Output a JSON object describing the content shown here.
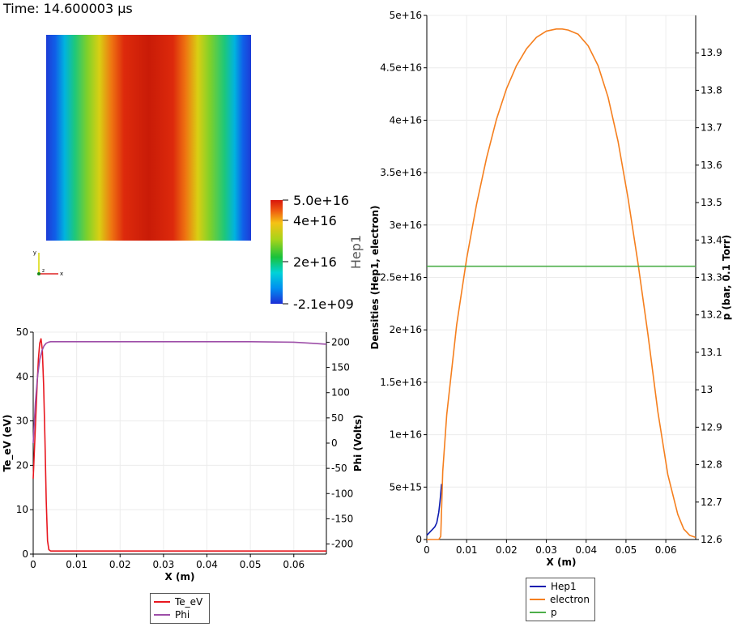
{
  "time_label": "Time: 14.600003 µs",
  "colormap": {
    "title": "Hep1",
    "max_label": "5.0e+16",
    "tick_labels": [
      "4e+16",
      "2e+16"
    ],
    "min_label": "-2.1e+09"
  },
  "axes_triad": {
    "x": "x",
    "y": "y",
    "z": "z"
  },
  "chart_data": [
    {
      "id": "te-phi",
      "type": "line",
      "title": "",
      "xlabel": "X (m)",
      "ylabel": "Te_eV (eV)",
      "y2label": "Phi (Volts)",
      "xlim": [
        0,
        0.0675
      ],
      "ylim": [
        0,
        50
      ],
      "y2lim": [
        -220,
        220
      ],
      "xticks": [
        0,
        0.01,
        0.02,
        0.03,
        0.04,
        0.05,
        0.06
      ],
      "xtick_labels": [
        "0",
        "0.01",
        "0.02",
        "0.03",
        "0.04",
        "0.05",
        "0.06"
      ],
      "yticks": [
        0,
        10,
        20,
        30,
        40,
        50
      ],
      "ytick_labels": [
        "0",
        "10",
        "20",
        "30",
        "40",
        "50"
      ],
      "y2ticks": [
        200,
        150,
        100,
        50,
        0,
        -50,
        -100,
        -150,
        -200
      ],
      "y2tick_labels": [
        "200",
        "150",
        "100",
        "50",
        "0",
        "-50",
        "-100",
        "-150",
        "-200"
      ],
      "grid": true,
      "legend_position": "bottom-center",
      "series": [
        {
          "name": "Te_eV",
          "axis": "left",
          "color": "#e8171f",
          "x": [
            0,
            0.0003,
            0.0006,
            0.0009,
            0.0012,
            0.0015,
            0.0018,
            0.0021,
            0.0024,
            0.0027,
            0.003,
            0.0033,
            0.0036,
            0.004,
            0.006,
            0.02,
            0.04,
            0.06,
            0.0675
          ],
          "y": [
            17,
            24,
            31,
            38,
            44,
            47.5,
            48.5,
            46,
            38,
            26,
            12,
            3,
            1,
            0.7,
            0.7,
            0.7,
            0.7,
            0.7,
            0.7
          ]
        },
        {
          "name": "Phi",
          "axis": "right",
          "color": "#9d4ea8",
          "x": [
            0,
            0.0005,
            0.001,
            0.0015,
            0.002,
            0.0025,
            0.003,
            0.0035,
            0.004,
            0.005,
            0.01,
            0.03,
            0.05,
            0.06,
            0.064,
            0.0675
          ],
          "y": [
            0,
            80,
            132,
            165,
            183,
            193,
            198,
            200,
            201,
            201,
            201,
            201,
            201,
            200,
            198,
            196
          ]
        }
      ]
    },
    {
      "id": "densities",
      "type": "line",
      "title": "",
      "xlabel": "X (m)",
      "ylabel": "Densities (Hep1, electron)",
      "y2label": "p (bar, 0.1 Torr)",
      "xlim": [
        0,
        0.0675
      ],
      "ylim": [
        0,
        5e+16
      ],
      "y2lim": [
        12.6,
        14.0
      ],
      "xticks": [
        0,
        0.01,
        0.02,
        0.03,
        0.04,
        0.05,
        0.06
      ],
      "xtick_labels": [
        "0",
        "0.01",
        "0.02",
        "0.03",
        "0.04",
        "0.05",
        "0.06"
      ],
      "yticks": [
        0,
        5000000000000000.0,
        1e+16,
        1.5e+16,
        2e+16,
        2.5e+16,
        3e+16,
        3.5e+16,
        4e+16,
        4.5e+16,
        5e+16
      ],
      "ytick_labels": [
        "0",
        "5e+15",
        "1e+16",
        "1.5e+16",
        "2e+16",
        "2.5e+16",
        "3e+16",
        "3.5e+16",
        "4e+16",
        "4.5e+16",
        "5e+16"
      ],
      "y2ticks": [
        12.6,
        12.7,
        12.8,
        12.9,
        13,
        13.1,
        13.2,
        13.3,
        13.4,
        13.5,
        13.6,
        13.7,
        13.8,
        13.9
      ],
      "y2tick_labels": [
        "12.6",
        "12.7",
        "12.8",
        "12.9",
        "13",
        "13.1",
        "13.2",
        "13.3",
        "13.4",
        "13.5",
        "13.6",
        "13.7",
        "13.8",
        "13.9"
      ],
      "grid": true,
      "legend_position": "bottom-center",
      "series": [
        {
          "name": "Hep1",
          "axis": "left",
          "color": "#0d1bb0",
          "x": [
            0,
            0.001,
            0.002,
            0.0025,
            0.003,
            0.0033,
            0.0035,
            0.0037
          ],
          "y": [
            400000000000000.0,
            800000000000000.0,
            1200000000000000.0,
            1600000000000000.0,
            2600000000000000.0,
            3600000000000000.0,
            4400000000000000.0,
            5300000000000000.0
          ]
        },
        {
          "name": "electron",
          "axis": "left",
          "color": "#f57f1e",
          "x": [
            0,
            0.003,
            0.0035,
            0.004,
            0.005,
            0.0075,
            0.01,
            0.0125,
            0.015,
            0.0175,
            0.02,
            0.0225,
            0.025,
            0.0275,
            0.03,
            0.0325,
            0.034,
            0.0355,
            0.038,
            0.0405,
            0.043,
            0.0455,
            0.048,
            0.0505,
            0.053,
            0.0555,
            0.058,
            0.0605,
            0.063,
            0.0645,
            0.066,
            0.0675
          ],
          "y": [
            0,
            0,
            300000000000000.0,
            6500000000000000.0,
            1.19e+16,
            2.05e+16,
            2.68e+16,
            3.2e+16,
            3.64e+16,
            4.01e+16,
            4.3e+16,
            4.52e+16,
            4.68e+16,
            4.79e+16,
            4.85e+16,
            4.87e+16,
            4.87e+16,
            4.86e+16,
            4.82e+16,
            4.71e+16,
            4.52e+16,
            4.22e+16,
            3.8e+16,
            3.26e+16,
            2.64e+16,
            1.96e+16,
            1.22e+16,
            6200000000000000.0,
            2400000000000000.0,
            1000000000000000.0,
            400000000000000.0,
            200000000000000.0
          ]
        },
        {
          "name": "p",
          "axis": "right",
          "color": "#4daf4a",
          "x": [
            0,
            0.0675
          ],
          "y": [
            13.33,
            13.33
          ]
        }
      ]
    }
  ]
}
